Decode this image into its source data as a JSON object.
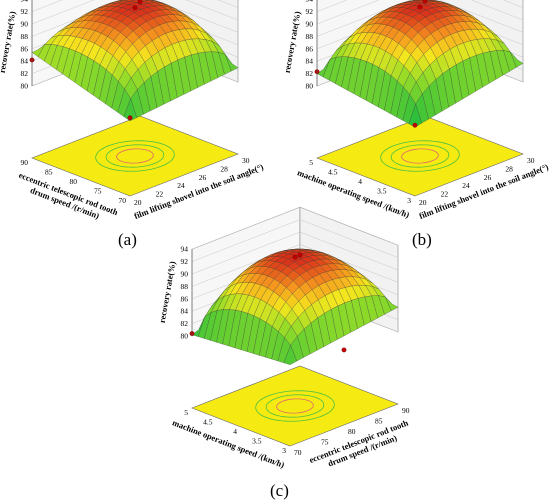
{
  "chart_data": [
    {
      "type": "surface3d",
      "panel_label": "(a)",
      "zlabel": "recovery rate(%)",
      "xlabel": "film lifting shovel into the soil angle(°)",
      "ylabel_lines": [
        "eccentric telescopic rod tooth",
        "drum speed /(r/min)"
      ],
      "x_ticks": [
        "20",
        "22",
        "24",
        "26",
        "28",
        "30"
      ],
      "y_ticks": [
        "70",
        "75",
        "80",
        "85",
        "90"
      ],
      "z_ticks": [
        "80",
        "82",
        "84",
        "86",
        "88",
        "90",
        "92",
        "94"
      ],
      "xlim": [
        20,
        30
      ],
      "ylim": [
        70,
        90
      ],
      "zlim": [
        80,
        94
      ],
      "peak": 92.5,
      "corners": {
        "x0y0": 80.5,
        "x1y0": 82.3,
        "x0y1": 85.4,
        "x1y1": 87.0
      },
      "design_points": [
        {
          "x": 25,
          "y": 80,
          "z": 92.3
        },
        {
          "x": 30,
          "y": 90,
          "z": 86.8
        },
        {
          "x": 20,
          "y": 90,
          "z": 84.2
        },
        {
          "x": 20,
          "y": 70,
          "z": 81.0
        }
      ]
    },
    {
      "type": "surface3d",
      "panel_label": "(b)",
      "zlabel": "recovery rate(%)",
      "xlabel": "film lifting shovel into the soil angle(°)",
      "ylabel_lines": [
        "machine operating speed /(km/h)"
      ],
      "x_ticks": [
        "20",
        "22",
        "24",
        "26",
        "28",
        "30"
      ],
      "y_ticks": [
        "3",
        "3.5",
        "4",
        "4.5",
        "5"
      ],
      "z_ticks": [
        "80",
        "82",
        "84",
        "86",
        "88",
        "90",
        "92",
        "94"
      ],
      "xlim": [
        20,
        30
      ],
      "ylim": [
        3,
        5
      ],
      "zlim": [
        80,
        94
      ],
      "peak": 92.4,
      "corners": {
        "x0y0": 79.5,
        "x1y0": 83.0,
        "x0y1": 82.0,
        "x1y1": 87.2
      },
      "design_points": [
        {
          "x": 25,
          "y": 4,
          "z": 92.4
        },
        {
          "x": 30,
          "y": 5,
          "z": 86.9
        },
        {
          "x": 20,
          "y": 5,
          "z": 82.3
        },
        {
          "x": 20,
          "y": 3,
          "z": 79.8
        }
      ]
    },
    {
      "type": "surface3d",
      "panel_label": "(c)",
      "zlabel": "recovery rate(%)",
      "xlabel_lines": [
        "eccentric telescopic rod tooth",
        "drum speed /(r/min)"
      ],
      "ylabel": "machine operating speed /(km/h)",
      "x_ticks": [
        "70",
        "75",
        "80",
        "85",
        "90"
      ],
      "y_ticks": [
        "3",
        "3.5",
        "4",
        "4.5",
        "5"
      ],
      "z_ticks": [
        "80",
        "82",
        "84",
        "86",
        "88",
        "90",
        "92",
        "94"
      ],
      "xlim": [
        70,
        90
      ],
      "ylim": [
        3,
        5
      ],
      "zlim": [
        80,
        94
      ],
      "peak": 92.6,
      "corners": {
        "x0y0": 81.5,
        "x1y0": 84.0,
        "x0y1": 80.2,
        "x1y1": 86.5
      },
      "design_points": [
        {
          "x": 80,
          "y": 4,
          "z": 92.4
        },
        {
          "x": 90,
          "y": 5,
          "z": 86.3
        },
        {
          "x": 70,
          "y": 5,
          "z": 80.4
        },
        {
          "x": 80,
          "y": 3,
          "z": 80.5
        }
      ]
    }
  ]
}
